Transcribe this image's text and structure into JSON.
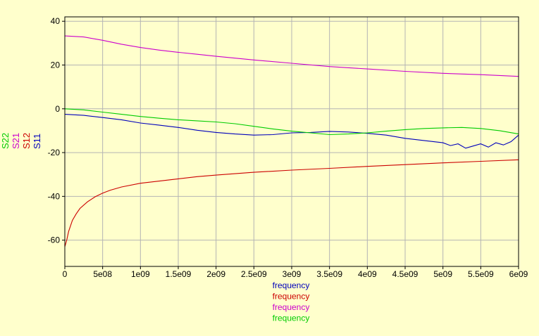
{
  "chart_data": {
    "type": "line",
    "title": "",
    "xlabel": "frequency",
    "x_axis_labels": [
      "frequency",
      "frequency",
      "frequency",
      "frequency"
    ],
    "xlim": [
      0,
      6000000000
    ],
    "ylim": [
      -72,
      42
    ],
    "x_ticks": [
      0,
      500000000,
      1000000000,
      1500000000,
      2000000000,
      2500000000,
      3000000000,
      3500000000,
      4000000000,
      4500000000,
      5000000000,
      5500000000,
      6000000000
    ],
    "x_tick_labels": [
      "0",
      "5e08",
      "1e09",
      "1.5e09",
      "2e09",
      "2.5e09",
      "3e09",
      "3.5e09",
      "4e09",
      "4.5e09",
      "5e09",
      "5.5e09",
      "6e09"
    ],
    "y_ticks": [
      40,
      20,
      0,
      -20,
      -40,
      -60
    ],
    "y_tick_labels": [
      "40",
      "20",
      "0",
      "-20",
      "-40",
      "-60"
    ],
    "grid": true,
    "legend_placement": "left",
    "series": [
      {
        "name": "S11",
        "color": "#0000bb",
        "x": [
          0,
          250000000,
          500000000,
          750000000,
          1000000000,
          1250000000,
          1500000000,
          1750000000,
          2000000000,
          2250000000,
          2500000000,
          2750000000,
          3000000000,
          3250000000,
          3500000000,
          3750000000,
          4000000000,
          4250000000,
          4500000000,
          4750000000,
          5000000000,
          5100000000,
          5200000000,
          5300000000,
          5400000000,
          5500000000,
          5600000000,
          5700000000,
          5800000000,
          5900000000,
          6000000000
        ],
        "y": [
          -2.5,
          -3,
          -4,
          -5,
          -6.5,
          -7.5,
          -8.5,
          -9.8,
          -10.8,
          -11.5,
          -12,
          -11.8,
          -11,
          -10.8,
          -10.3,
          -10.6,
          -11.2,
          -12,
          -13.5,
          -14.5,
          -15.5,
          -16.8,
          -16,
          -18,
          -17,
          -16,
          -17.5,
          -15.5,
          -16.5,
          -15,
          -12
        ]
      },
      {
        "name": "S12",
        "color": "#cc0000",
        "x": [
          0,
          25000000,
          50000000,
          100000000,
          150000000,
          200000000,
          300000000,
          400000000,
          500000000,
          600000000,
          750000000,
          1000000000,
          1250000000,
          1500000000,
          1750000000,
          2000000000,
          2500000000,
          3000000000,
          3500000000,
          4000000000,
          4500000000,
          5000000000,
          5500000000,
          6000000000
        ],
        "y": [
          -63,
          -60,
          -56,
          -51,
          -48,
          -45.5,
          -42.5,
          -40.2,
          -38.5,
          -37.2,
          -35.7,
          -34,
          -33,
          -32,
          -31,
          -30.3,
          -29,
          -28,
          -27.2,
          -26.3,
          -25.5,
          -24.7,
          -24,
          -23.3
        ]
      },
      {
        "name": "S21",
        "color": "#cc00cc",
        "x": [
          0,
          250000000,
          500000000,
          750000000,
          1000000000,
          1250000000,
          1500000000,
          1750000000,
          2000000000,
          2500000000,
          3000000000,
          3500000000,
          4000000000,
          4500000000,
          5000000000,
          5500000000,
          6000000000
        ],
        "y": [
          33.3,
          32.8,
          31.3,
          29.5,
          28,
          26.8,
          25.8,
          24.9,
          24,
          22.3,
          20.8,
          19.3,
          18.2,
          17.1,
          16.2,
          15.6,
          14.8
        ]
      },
      {
        "name": "S22",
        "color": "#00cc00",
        "x": [
          0,
          250000000,
          500000000,
          750000000,
          1000000000,
          1250000000,
          1500000000,
          1750000000,
          2000000000,
          2250000000,
          2500000000,
          2750000000,
          3000000000,
          3250000000,
          3500000000,
          3750000000,
          4000000000,
          4250000000,
          4500000000,
          4750000000,
          5000000000,
          5250000000,
          5500000000,
          5750000000,
          6000000000
        ],
        "y": [
          0,
          -0.5,
          -1.5,
          -2.5,
          -3.5,
          -4.3,
          -5,
          -5.5,
          -6,
          -6.8,
          -8,
          -9.2,
          -10.2,
          -11,
          -11.8,
          -11.5,
          -11,
          -10.2,
          -9.5,
          -9,
          -8.7,
          -8.5,
          -9,
          -10,
          -11.5
        ]
      }
    ]
  }
}
